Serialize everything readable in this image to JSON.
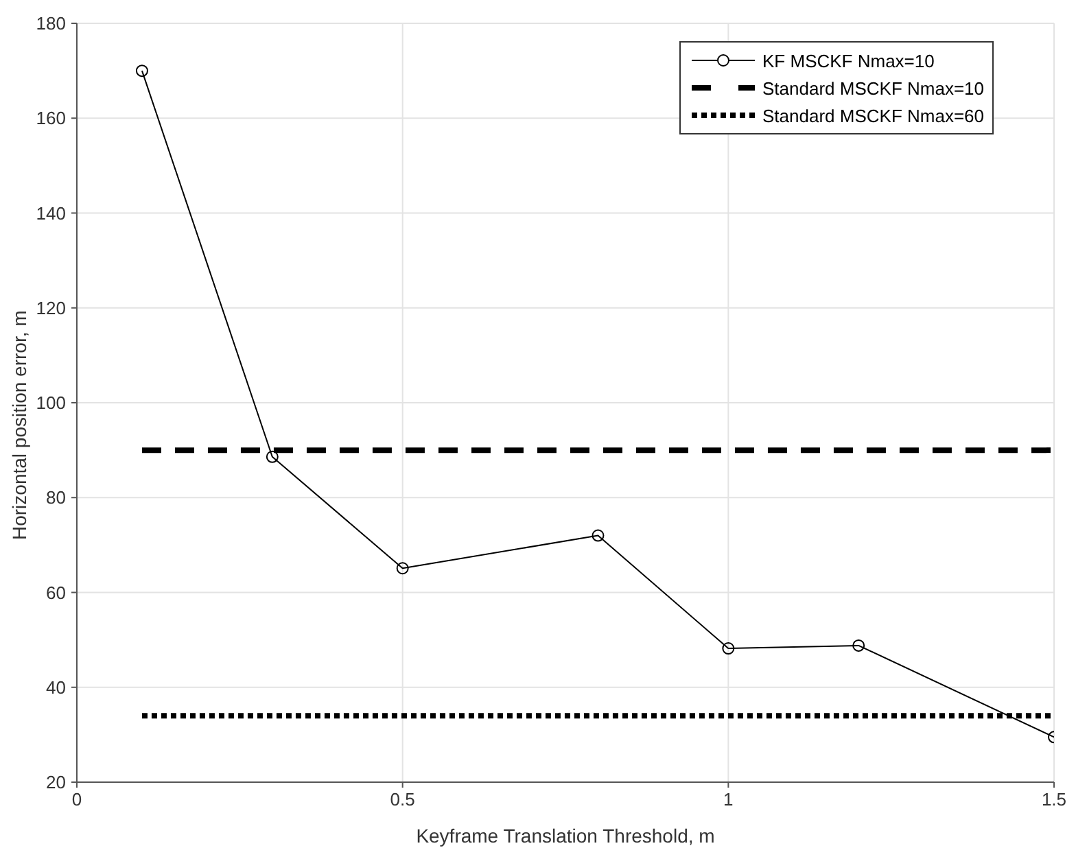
{
  "chart_data": {
    "type": "line",
    "xlabel": "Keyframe Translation Threshold, m",
    "ylabel": "Horizontal position error, m",
    "xlim": [
      0,
      1.5
    ],
    "xticks": [
      0,
      0.5,
      1,
      1.5
    ],
    "ylim": [
      20,
      180
    ],
    "yticks": [
      20,
      40,
      60,
      80,
      100,
      120,
      140,
      160,
      180
    ],
    "grid": true,
    "legend": "top right",
    "series": [
      {
        "name": "KF MSCKF Nmax=10",
        "color": "#000000",
        "marker": "circle",
        "line_style": "solid",
        "x": [
          0.1,
          0.3,
          0.5,
          0.8,
          1,
          1.2,
          1.5
        ],
        "values": [
          170,
          88.6,
          65.1,
          72,
          48.2,
          48.8,
          29.5
        ]
      },
      {
        "name": "Standard MSCKF Nmax=10",
        "color": "#000000",
        "marker": "none",
        "line_style": "dashed",
        "x": [
          0.1,
          1.5
        ],
        "values": [
          90,
          90
        ]
      },
      {
        "name": "Standard MSCKF Nmax=60",
        "color": "#000000",
        "marker": "none",
        "line_style": "dotted",
        "x": [
          0.1,
          1.5
        ],
        "values": [
          34,
          34
        ]
      }
    ]
  }
}
